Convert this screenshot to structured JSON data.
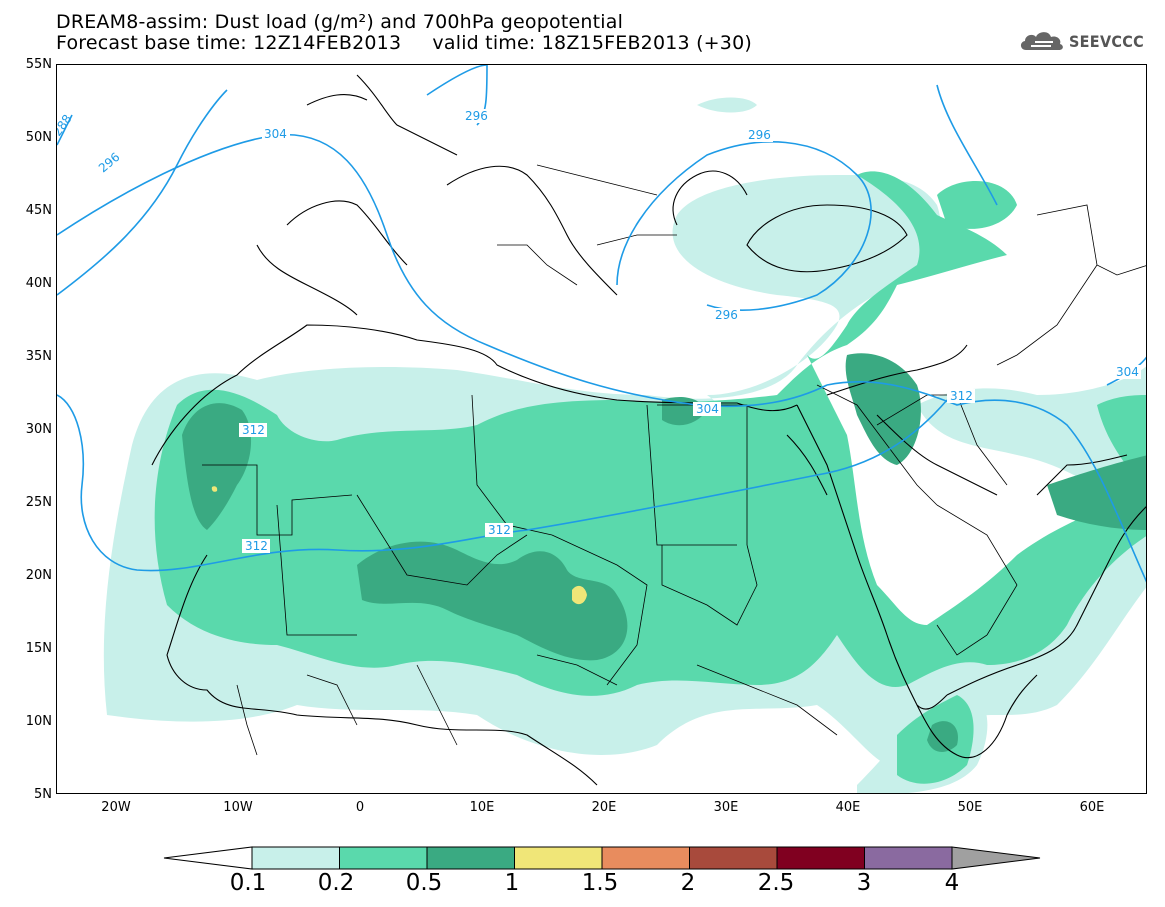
{
  "title": {
    "line1": "DREAM8-assim: Dust load (g/m²) and 700hPa geopotential",
    "line2": "Forecast base time: 12Z14FEB2013     valid time: 18Z15FEB2013 (+30)"
  },
  "logo": {
    "text": "SEEVCCC",
    "icon": "cloud-icon"
  },
  "lat_labels": [
    "55N",
    "50N",
    "45N",
    "40N",
    "35N",
    "30N",
    "25N",
    "20N",
    "15N",
    "10N",
    "5N"
  ],
  "lon_labels": [
    "20W",
    "10W",
    "0",
    "10E",
    "20E",
    "30E",
    "40E",
    "50E",
    "60E"
  ],
  "contour_labels": [
    "288",
    "296",
    "304",
    "296",
    "296",
    "296",
    "304",
    "304",
    "312",
    "312",
    "312",
    "312"
  ],
  "colorbar": {
    "colors": [
      "#c8f0ea",
      "#5ad9ac",
      "#3aaa82",
      "#f0e678",
      "#e88c5e",
      "#a84a3c",
      "#800020",
      "#8a6aa0"
    ],
    "under_color": "#ffffff",
    "over_color": "#a0a0a0",
    "labels": [
      "0.1",
      "0.2",
      "0.5",
      "1",
      "1.5",
      "2",
      "2.5",
      "3",
      "4"
    ]
  }
}
